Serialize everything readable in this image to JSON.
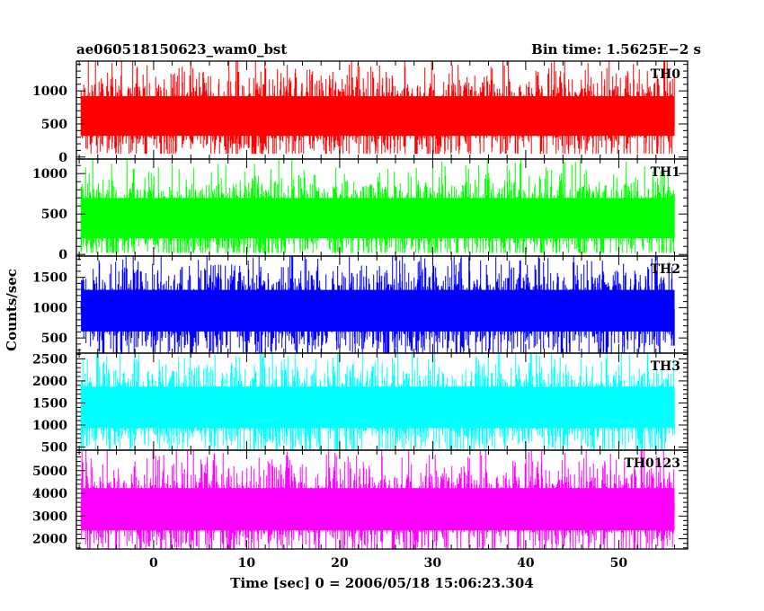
{
  "chart_data": {
    "type": "line",
    "title_left": "ae060518150623_wam0_bst",
    "title_right": "Bin time: 1.5625E−2 s",
    "xlabel": "Time [sec] 0 = 2006/05/18 15:06:23.304",
    "ylabel": "Counts/sec",
    "xlim": [
      -8.3,
      57.4
    ],
    "data_x_range": [
      -7.8,
      56.0
    ],
    "bin_time": 0.015625,
    "x_ticks": [
      0,
      10,
      20,
      30,
      40,
      50
    ],
    "grid": false,
    "legend": "none",
    "panels": [
      {
        "name": "TH0",
        "color": "#ff0000",
        "ylim": [
          -30,
          1450
        ],
        "y_ticks": [
          0,
          500,
          1000
        ],
        "mean": 620,
        "min": 50,
        "max": 1450
      },
      {
        "name": "TH1",
        "color": "#00ff00",
        "ylim": [
          -20,
          1180
        ],
        "y_ticks": [
          0,
          500,
          1000
        ],
        "mean": 450,
        "min": 20,
        "max": 1180
      },
      {
        "name": "TH2",
        "color": "#0000ff",
        "ylim": [
          250,
          1850
        ],
        "y_ticks": [
          500,
          1000,
          1500
        ],
        "mean": 950,
        "min": 250,
        "max": 1850
      },
      {
        "name": "TH3",
        "color": "#00ffff",
        "ylim": [
          430,
          2630
        ],
        "y_ticks": [
          500,
          1000,
          1500,
          2000,
          2500
        ],
        "mean": 1400,
        "min": 430,
        "max": 2630
      },
      {
        "name": "TH0123",
        "color": "#ff00ff",
        "ylim": [
          1550,
          5900
        ],
        "y_ticks": [
          2000,
          3000,
          4000,
          5000
        ],
        "mean": 3300,
        "min": 1550,
        "max": 5900
      }
    ]
  }
}
